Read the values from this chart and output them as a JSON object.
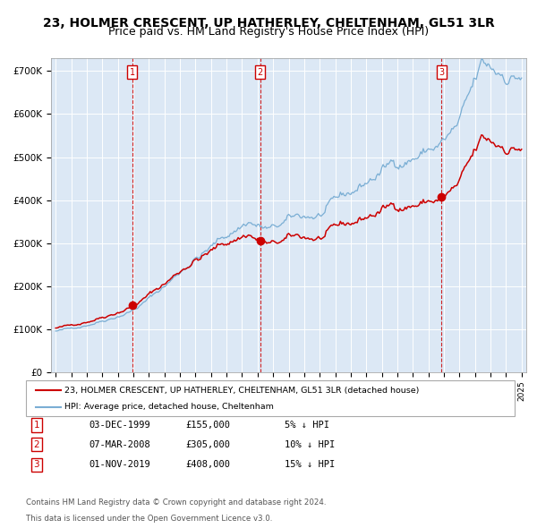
{
  "title": "23, HOLMER CRESCENT, UP HATHERLEY, CHELTENHAM, GL51 3LR",
  "subtitle": "Price paid vs. HM Land Registry's House Price Index (HPI)",
  "ylim": [
    0,
    730000
  ],
  "yticks": [
    0,
    100000,
    200000,
    300000,
    400000,
    500000,
    600000,
    700000
  ],
  "ytick_labels": [
    "£0",
    "£100K",
    "£200K",
    "£300K",
    "£400K",
    "£500K",
    "£600K",
    "£700K"
  ],
  "x_start_year": 1995,
  "x_end_year": 2025,
  "bg_color": "#dce8f5",
  "grid_color": "#ffffff",
  "red_line_color": "#cc0000",
  "blue_line_color": "#7aaed4",
  "sale_points": [
    {
      "year": 1999,
      "month": 12,
      "price": 155000,
      "label": "1",
      "date_str": "03-DEC-1999",
      "pct": "5%",
      "direction": "↓"
    },
    {
      "year": 2008,
      "month": 3,
      "price": 305000,
      "label": "2",
      "date_str": "07-MAR-2008",
      "pct": "10%",
      "direction": "↓"
    },
    {
      "year": 2019,
      "month": 11,
      "price": 408000,
      "label": "3",
      "date_str": "01-NOV-2019",
      "pct": "15%",
      "direction": "↓"
    }
  ],
  "legend_line1": "23, HOLMER CRESCENT, UP HATHERLEY, CHELTENHAM, GL51 3LR (detached house)",
  "legend_line2": "HPI: Average price, detached house, Cheltenham",
  "footer1": "Contains HM Land Registry data © Crown copyright and database right 2024.",
  "footer2": "This data is licensed under the Open Government Licence v3.0.",
  "title_fontsize": 10,
  "subtitle_fontsize": 9
}
